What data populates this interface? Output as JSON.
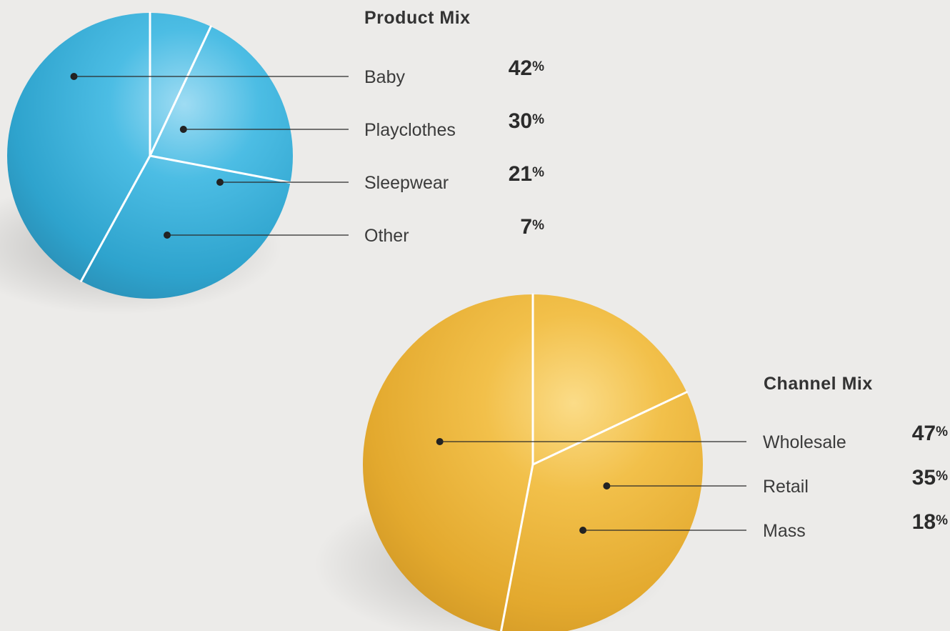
{
  "chart_data": [
    {
      "type": "pie",
      "title": "Product Mix",
      "categories": [
        "Baby",
        "Playclothes",
        "Sleepwear",
        "Other"
      ],
      "values": [
        42,
        30,
        21,
        7
      ],
      "value_suffix": "%",
      "color": "#3fb3d9"
    },
    {
      "type": "pie",
      "title": "Channel Mix",
      "categories": [
        "Wholesale",
        "Retail",
        "Mass"
      ],
      "values": [
        47,
        35,
        18
      ],
      "value_suffix": "%",
      "color": "#f0b83a"
    }
  ]
}
